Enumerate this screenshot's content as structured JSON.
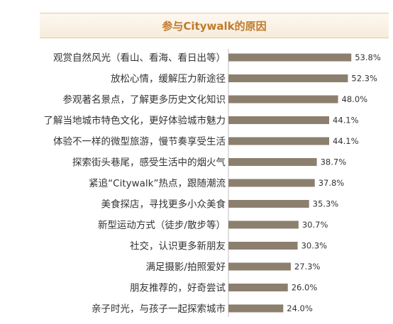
{
  "chart_data": {
    "type": "bar",
    "orientation": "horizontal",
    "title": "参与Citywalk的原因",
    "categories": [
      "观赏自然风光（看山、看海、看日出等）",
      "放松心情，缓解压力新途径",
      "参观著名景点，了解更多历史文化知识",
      "了解当地城市特色文化，更好体验城市魅力",
      "体验不一样的微型旅游，慢节奏享受生活",
      "探索街头巷尾，感受生活中的烟火气",
      "紧追“Citywalk”热点，跟随潮流",
      "美食探店，寻找更多小众美食",
      "新型运动方式（徒步/散步等）",
      "社交，认识更多新朋友",
      "满足摄影/拍照爱好",
      "朋友推荐的，好奇尝试",
      "亲子时光，与孩子一起探索城市"
    ],
    "values": [
      53.8,
      52.3,
      48.0,
      44.1,
      44.1,
      38.7,
      37.8,
      35.3,
      30.7,
      30.3,
      27.3,
      26.0,
      24.0
    ],
    "value_labels": [
      "53.8%",
      "52.3%",
      "48.0%",
      "44.1%",
      "44.1%",
      "38.7%",
      "37.8%",
      "35.3%",
      "30.7%",
      "30.3%",
      "27.3%",
      "26.0%",
      "24.0%"
    ],
    "xlim": [
      0,
      60
    ],
    "bar_color": "#8c7f6e",
    "title_color": "#c07a2a",
    "grid": false,
    "legend": "none"
  }
}
